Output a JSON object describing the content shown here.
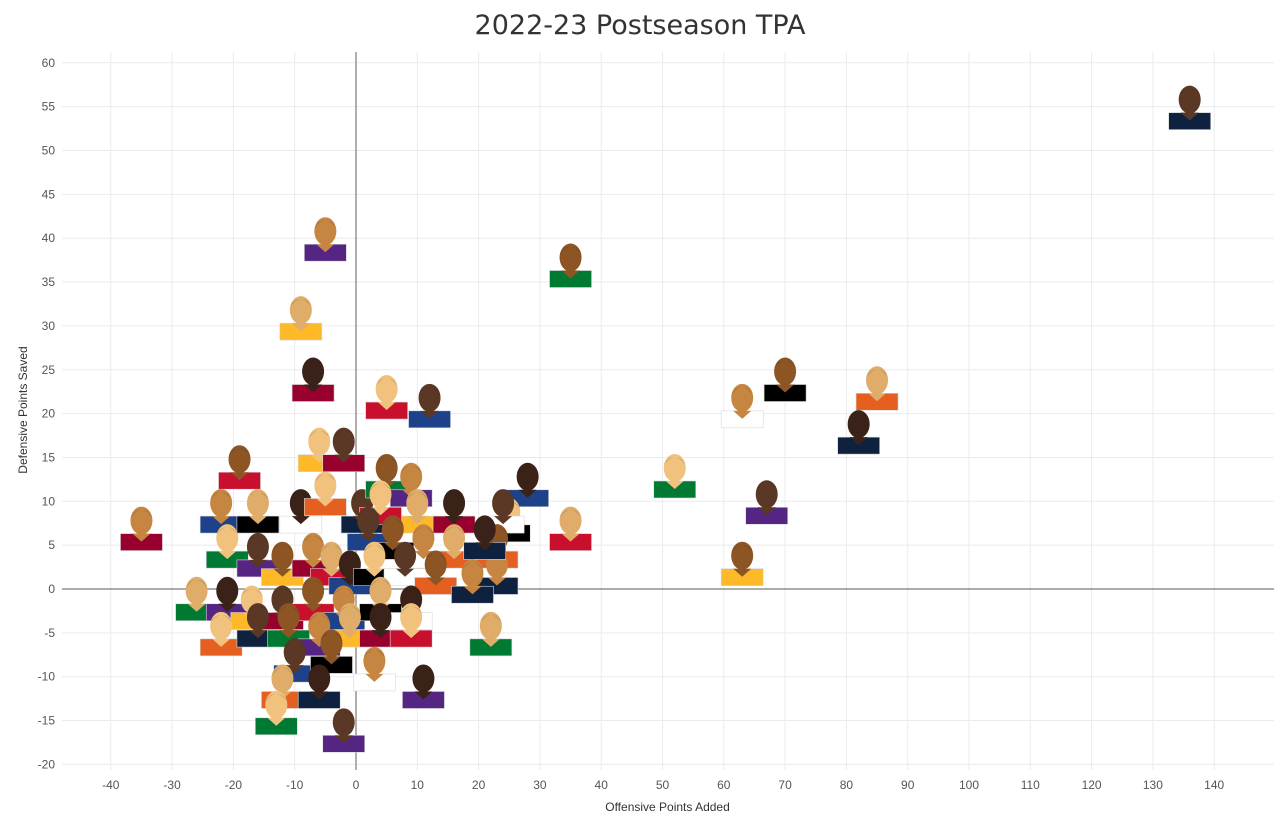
{
  "chart_data": {
    "type": "scatter",
    "title": "2022-23 Postseason TPA",
    "xlabel": "Offensive Points Added",
    "ylabel": "Defensive Points Saved",
    "xlim": [
      -48,
      150
    ],
    "ylim": [
      -21,
      61
    ],
    "xticks": [
      -40,
      -30,
      -20,
      -10,
      0,
      10,
      20,
      30,
      40,
      50,
      60,
      70,
      80,
      90,
      100,
      110,
      120,
      130,
      140
    ],
    "yticks": [
      60,
      55,
      50,
      45,
      40,
      35,
      30,
      25,
      20,
      15,
      10,
      5,
      0,
      -5,
      -10,
      -15,
      -20
    ],
    "grid": true,
    "marker": "player-headshot",
    "colors": {
      "grid": "#ebebeb",
      "zero_line": "#7a7a7a",
      "jersey_palette": [
        "#0e2240",
        "#007a33",
        "#552583",
        "#fdb927",
        "#98002e",
        "#c8102e",
        "#1d428a",
        "#000000",
        "#ffffff",
        "#e56020"
      ]
    },
    "points": [
      {
        "x": 136,
        "y": 55
      },
      {
        "x": 35,
        "y": 37
      },
      {
        "x": -5,
        "y": 40
      },
      {
        "x": -9,
        "y": 31
      },
      {
        "x": -7,
        "y": 24
      },
      {
        "x": 5,
        "y": 22
      },
      {
        "x": 12,
        "y": 21
      },
      {
        "x": 70,
        "y": 24
      },
      {
        "x": 63,
        "y": 21
      },
      {
        "x": 85,
        "y": 23
      },
      {
        "x": 82,
        "y": 18
      },
      {
        "x": 52,
        "y": 13
      },
      {
        "x": 67,
        "y": 10
      },
      {
        "x": 63,
        "y": 3
      },
      {
        "x": -35,
        "y": 7
      },
      {
        "x": 35,
        "y": 7
      },
      {
        "x": 28,
        "y": 12
      },
      {
        "x": 25,
        "y": 8
      },
      {
        "x": 24,
        "y": 9
      },
      {
        "x": 23,
        "y": 5
      },
      {
        "x": 23,
        "y": 2
      },
      {
        "x": 22,
        "y": -5
      },
      {
        "x": 11,
        "y": -11
      },
      {
        "x": -6,
        "y": 16
      },
      {
        "x": -2,
        "y": 16
      },
      {
        "x": -19,
        "y": 14
      },
      {
        "x": -22,
        "y": 9
      },
      {
        "x": -16,
        "y": 9
      },
      {
        "x": -9,
        "y": 9
      },
      {
        "x": -5,
        "y": 11
      },
      {
        "x": 1,
        "y": 9
      },
      {
        "x": 5,
        "y": 13
      },
      {
        "x": 9,
        "y": 12
      },
      {
        "x": 10,
        "y": 9
      },
      {
        "x": 16,
        "y": 9
      },
      {
        "x": 4,
        "y": 10
      },
      {
        "x": 2,
        "y": 7
      },
      {
        "x": 6,
        "y": 6
      },
      {
        "x": 11,
        "y": 5
      },
      {
        "x": 16,
        "y": 5
      },
      {
        "x": 21,
        "y": 6
      },
      {
        "x": -21,
        "y": 5
      },
      {
        "x": -16,
        "y": 4
      },
      {
        "x": -12,
        "y": 3
      },
      {
        "x": -7,
        "y": 4
      },
      {
        "x": -4,
        "y": 3
      },
      {
        "x": -1,
        "y": 2
      },
      {
        "x": 3,
        "y": 3
      },
      {
        "x": 8,
        "y": 3
      },
      {
        "x": 13,
        "y": 2
      },
      {
        "x": 19,
        "y": 1
      },
      {
        "x": -26,
        "y": -1
      },
      {
        "x": -21,
        "y": -1
      },
      {
        "x": -17,
        "y": -2
      },
      {
        "x": -12,
        "y": -2
      },
      {
        "x": -7,
        "y": -1
      },
      {
        "x": -2,
        "y": -2
      },
      {
        "x": 4,
        "y": -1
      },
      {
        "x": 9,
        "y": -2
      },
      {
        "x": -22,
        "y": -5
      },
      {
        "x": -16,
        "y": -4
      },
      {
        "x": -11,
        "y": -4
      },
      {
        "x": -6,
        "y": -5
      },
      {
        "x": -1,
        "y": -4
      },
      {
        "x": 4,
        "y": -4
      },
      {
        "x": 9,
        "y": -4
      },
      {
        "x": -10,
        "y": -8
      },
      {
        "x": -4,
        "y": -7
      },
      {
        "x": 3,
        "y": -9
      },
      {
        "x": -12,
        "y": -11
      },
      {
        "x": -6,
        "y": -11
      },
      {
        "x": -13,
        "y": -14
      },
      {
        "x": -2,
        "y": -16
      }
    ]
  }
}
